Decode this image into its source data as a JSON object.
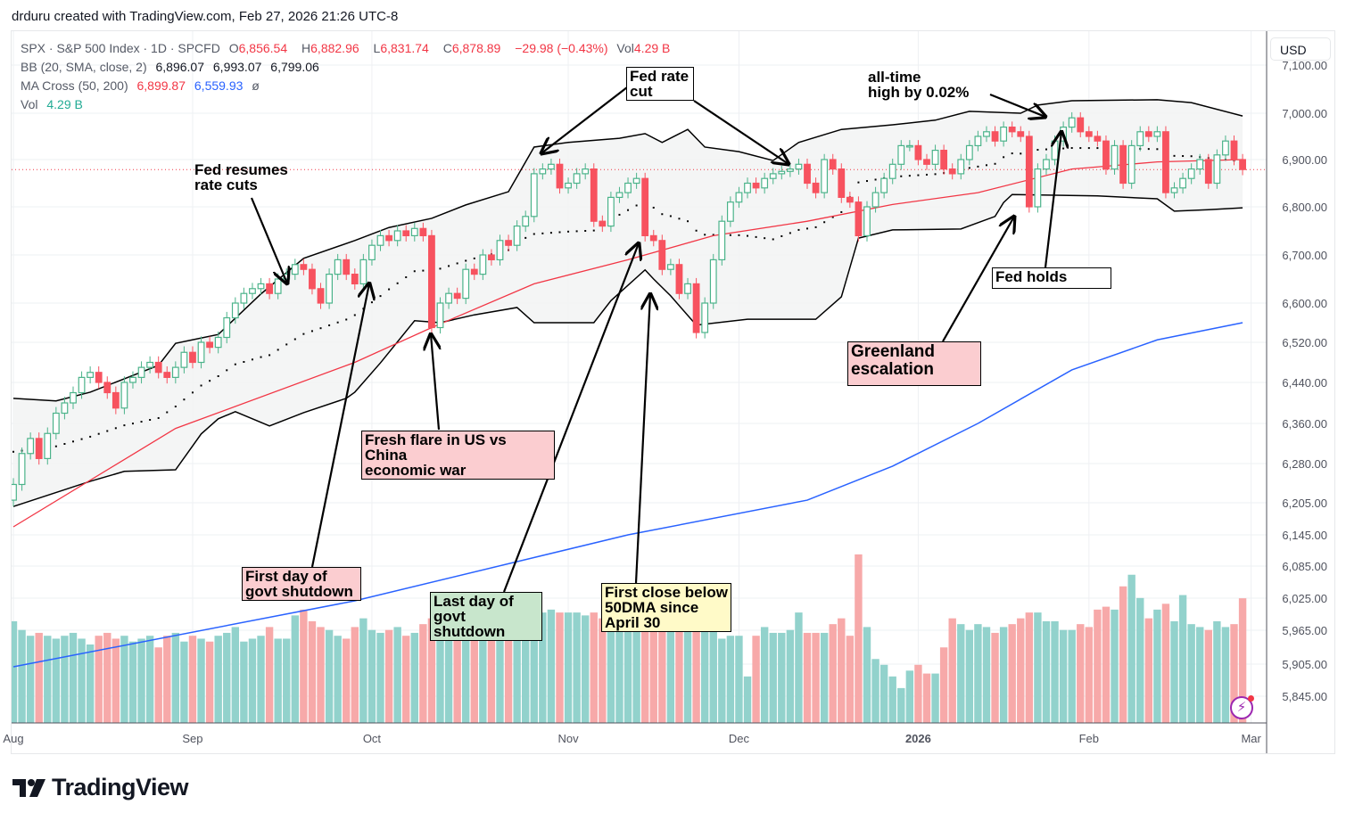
{
  "credit": "drduru created with TradingView.com, Feb 27, 2026 21:26 UTC-8",
  "legend": {
    "symbol": "SPX · S&P 500 Index · 1D · SPCFD",
    "o_label": "O",
    "o": "6,856.54",
    "h_label": "H",
    "h": "6,882.96",
    "l_label": "L",
    "l": "6,831.74",
    "c_label": "C",
    "c": "6,878.89",
    "change": "−29.98 (−0.43%)",
    "vol_label": "Vol",
    "vol": "4.29 B",
    "bb_label": "BB (20, SMA, close, 2)",
    "bb_basis": "6,896.07",
    "bb_upper": "6,993.07",
    "bb_lower": "6,799.06",
    "ma_label": "MA Cross (50, 200)",
    "ma50": "6,899.87",
    "ma200": "6,559.93",
    "ma_symbol": "ø",
    "vol2_label": "Vol",
    "vol2": "4.29 B"
  },
  "currency": "USD",
  "brand": "TradingView",
  "colors": {
    "up": "#4bb38a",
    "down": "#f7525f",
    "vol_up": "#92d2cc",
    "vol_down": "#f7a9a9",
    "ma50": "#f23645",
    "ma200": "#2962ff",
    "bb": "#000000",
    "bb_fill": "#f2f3f3"
  },
  "chart_data": {
    "type": "candlestick",
    "title": "SPX · S&P 500 Index · 1D",
    "y_ticks": [
      7100,
      7000,
      6900,
      6800,
      6700,
      6600,
      6520,
      6440,
      6360,
      6280,
      6205,
      6145,
      6085,
      6025,
      5965,
      5905,
      5845
    ],
    "y_tick_labels": [
      "7,100.00",
      "7,000.00",
      "6,900.00",
      "6,800.00",
      "6,700.00",
      "6,600.00",
      "6,520.00",
      "6,440.00",
      "6,360.00",
      "6,280.00",
      "6,205.00",
      "6,145.00",
      "6,085.00",
      "6,025.00",
      "5,965.00",
      "5,905.00",
      "5,845.00"
    ],
    "x_ticks": [
      {
        "label": "Aug",
        "index": 0
      },
      {
        "label": "Sep",
        "index": 21
      },
      {
        "label": "Oct",
        "index": 42
      },
      {
        "label": "Nov",
        "index": 65
      },
      {
        "label": "Dec",
        "index": 85
      },
      {
        "label": "2026",
        "index": 106
      },
      {
        "label": "Feb",
        "index": 126
      },
      {
        "label": "Mar",
        "index": 145
      }
    ],
    "last_close": 6878.89,
    "close": [
      6240,
      6300,
      6330,
      6290,
      6340,
      6380,
      6400,
      6420,
      6450,
      6460,
      6440,
      6420,
      6390,
      6440,
      6450,
      6470,
      6480,
      6460,
      6450,
      6470,
      6500,
      6480,
      6520,
      6510,
      6530,
      6570,
      6600,
      6620,
      6630,
      6640,
      6620,
      6650,
      6660,
      6680,
      6670,
      6630,
      6600,
      6660,
      6690,
      6660,
      6640,
      6690,
      6720,
      6740,
      6730,
      6750,
      6740,
      6755,
      6740,
      6550,
      6600,
      6620,
      6610,
      6670,
      6660,
      6700,
      6690,
      6730,
      6720,
      6760,
      6780,
      6870,
      6880,
      6890,
      6840,
      6850,
      6870,
      6880,
      6770,
      6760,
      6820,
      6830,
      6850,
      6860,
      6740,
      6730,
      6670,
      6680,
      6620,
      6640,
      6540,
      6600,
      6690,
      6770,
      6810,
      6830,
      6850,
      6840,
      6860,
      6870,
      6875,
      6880,
      6890,
      6850,
      6830,
      6900,
      6880,
      6820,
      6810,
      6740,
      6800,
      6830,
      6860,
      6890,
      6930,
      6930,
      6900,
      6890,
      6920,
      6880,
      6870,
      6900,
      6930,
      6950,
      6960,
      6940,
      6970,
      6960,
      6950,
      6800,
      6880,
      6900,
      6940,
      6970,
      6990,
      6960,
      6950,
      6940,
      6880,
      6930,
      6850,
      6930,
      6960,
      6950,
      6960,
      6830,
      6840,
      6860,
      6880,
      6900,
      6850,
      6910,
      6940,
      6900,
      6878.89
    ],
    "volume_billions": [
      3.5,
      3.2,
      3.0,
      3.1,
      3.0,
      2.9,
      3.0,
      3.1,
      2.9,
      2.7,
      3.0,
      3.1,
      2.9,
      3.0,
      2.8,
      2.9,
      3.0,
      2.6,
      3.0,
      3.1,
      2.8,
      3.0,
      2.9,
      2.8,
      3.0,
      3.1,
      3.3,
      2.8,
      2.9,
      3.0,
      3.3,
      2.9,
      2.9,
      3.7,
      3.9,
      3.5,
      3.3,
      3.2,
      3.0,
      2.9,
      3.3,
      3.6,
      3.2,
      3.1,
      3.2,
      3.3,
      3.0,
      3.1,
      3.4,
      3.6,
      3.3,
      3.1,
      3.5,
      3.4,
      3.0,
      3.2,
      3.3,
      3.4,
      3.5,
      3.4,
      3.6,
      3.7,
      3.8,
      3.9,
      3.8,
      3.8,
      3.8,
      3.7,
      3.8,
      3.6,
      3.5,
      3.6,
      3.6,
      3.7,
      3.8,
      3.7,
      3.8,
      3.8,
      3.9,
      3.6,
      3.9,
      3.7,
      3.3,
      2.9,
      3.0,
      3.0,
      1.6,
      3.0,
      3.3,
      3.1,
      3.1,
      3.2,
      3.8,
      3.1,
      3.1,
      3.1,
      3.4,
      3.6,
      3.0,
      5.8,
      3.3,
      2.2,
      2.0,
      1.6,
      1.2,
      1.8,
      2.0,
      1.7,
      1.7,
      2.6,
      3.6,
      3.4,
      3.2,
      3.4,
      3.3,
      3.1,
      3.3,
      3.4,
      3.6,
      3.8,
      3.8,
      3.5,
      3.5,
      3.2,
      3.2,
      3.4,
      3.3,
      3.9,
      4.0,
      3.9,
      4.7,
      5.1,
      4.3,
      3.6,
      3.9,
      4.1,
      3.5,
      4.4,
      3.4,
      3.3,
      3.2,
      3.5,
      3.3,
      3.4,
      4.29
    ],
    "ma50": [
      [
        0,
        6160
      ],
      [
        19,
        6350
      ],
      [
        40,
        6480
      ],
      [
        49,
        6550
      ],
      [
        61,
        6640
      ],
      [
        72,
        6690
      ],
      [
        82,
        6740
      ],
      [
        93,
        6770
      ],
      [
        103,
        6805
      ],
      [
        113,
        6830
      ],
      [
        124,
        6880
      ],
      [
        134,
        6895
      ],
      [
        144,
        6900
      ]
    ],
    "ma200": [
      [
        0,
        5900
      ],
      [
        40,
        6020
      ],
      [
        72,
        6145
      ],
      [
        93,
        6210
      ],
      [
        103,
        6275
      ],
      [
        113,
        6360
      ],
      [
        124,
        6465
      ],
      [
        134,
        6525
      ],
      [
        144,
        6560
      ]
    ],
    "bb_upper": [
      [
        0,
        6409
      ],
      [
        5,
        6404
      ],
      [
        9,
        6421
      ],
      [
        17,
        6474
      ],
      [
        19,
        6518
      ],
      [
        24,
        6536
      ],
      [
        29,
        6619
      ],
      [
        34,
        6693
      ],
      [
        40,
        6730
      ],
      [
        44,
        6757
      ],
      [
        49,
        6776
      ],
      [
        53,
        6804
      ],
      [
        58,
        6832
      ],
      [
        61,
        6927
      ],
      [
        65,
        6937
      ],
      [
        71,
        6946
      ],
      [
        74,
        6956
      ],
      [
        76,
        6937
      ],
      [
        79,
        6965
      ],
      [
        81,
        6927
      ],
      [
        85,
        6917
      ],
      [
        89,
        6898
      ],
      [
        92,
        6937
      ],
      [
        97,
        6965
      ],
      [
        103,
        6975
      ],
      [
        108,
        6985
      ],
      [
        112,
        7004
      ],
      [
        118,
        7000
      ],
      [
        120,
        7017
      ],
      [
        124,
        7026
      ],
      [
        134,
        7028
      ],
      [
        138,
        7022
      ],
      [
        144,
        6994
      ]
    ],
    "bb_lower": [
      [
        0,
        6198
      ],
      [
        9,
        6246
      ],
      [
        13,
        6265
      ],
      [
        19,
        6268
      ],
      [
        22,
        6339
      ],
      [
        24,
        6369
      ],
      [
        26,
        6383
      ],
      [
        30,
        6355
      ],
      [
        34,
        6381
      ],
      [
        39,
        6409
      ],
      [
        40,
        6421
      ],
      [
        43,
        6479
      ],
      [
        47,
        6564
      ],
      [
        50,
        6560
      ],
      [
        54,
        6576
      ],
      [
        59,
        6591
      ],
      [
        61,
        6560
      ],
      [
        68,
        6560
      ],
      [
        70,
        6605
      ],
      [
        74,
        6669
      ],
      [
        75,
        6650
      ],
      [
        77,
        6615
      ],
      [
        80,
        6555
      ],
      [
        86,
        6567
      ],
      [
        94,
        6567
      ],
      [
        97,
        6613
      ],
      [
        99,
        6735
      ],
      [
        103,
        6752
      ],
      [
        111,
        6754
      ],
      [
        115,
        6780
      ],
      [
        116,
        6809
      ],
      [
        117,
        6826
      ],
      [
        127,
        6823
      ],
      [
        134,
        6817
      ],
      [
        136,
        6791
      ],
      [
        140,
        6794
      ],
      [
        144,
        6798
      ]
    ],
    "annotations": [
      {
        "id": "fed-resumes",
        "text": [
          "Fed resumes",
          "rate cuts"
        ]
      },
      {
        "id": "fed-rate-cut",
        "text": [
          "Fed rate",
          "cut"
        ]
      },
      {
        "id": "all-time-high",
        "text": [
          "all-time",
          "high by 0.02%"
        ]
      },
      {
        "id": "fed-holds",
        "text": [
          "Fed holds"
        ]
      },
      {
        "id": "greenland",
        "text": [
          "Greenland",
          "escalation"
        ]
      },
      {
        "id": "us-china",
        "text": [
          "Fresh flare in US vs China",
          "economic war"
        ]
      },
      {
        "id": "shutdown-first",
        "text": [
          "First day of",
          "govt shutdown"
        ]
      },
      {
        "id": "shutdown-last",
        "text": [
          "Last day of",
          "govt shutdown"
        ]
      },
      {
        "id": "below-50dma",
        "text": [
          "First close below",
          "50DMA since",
          "April 30"
        ]
      }
    ]
  }
}
